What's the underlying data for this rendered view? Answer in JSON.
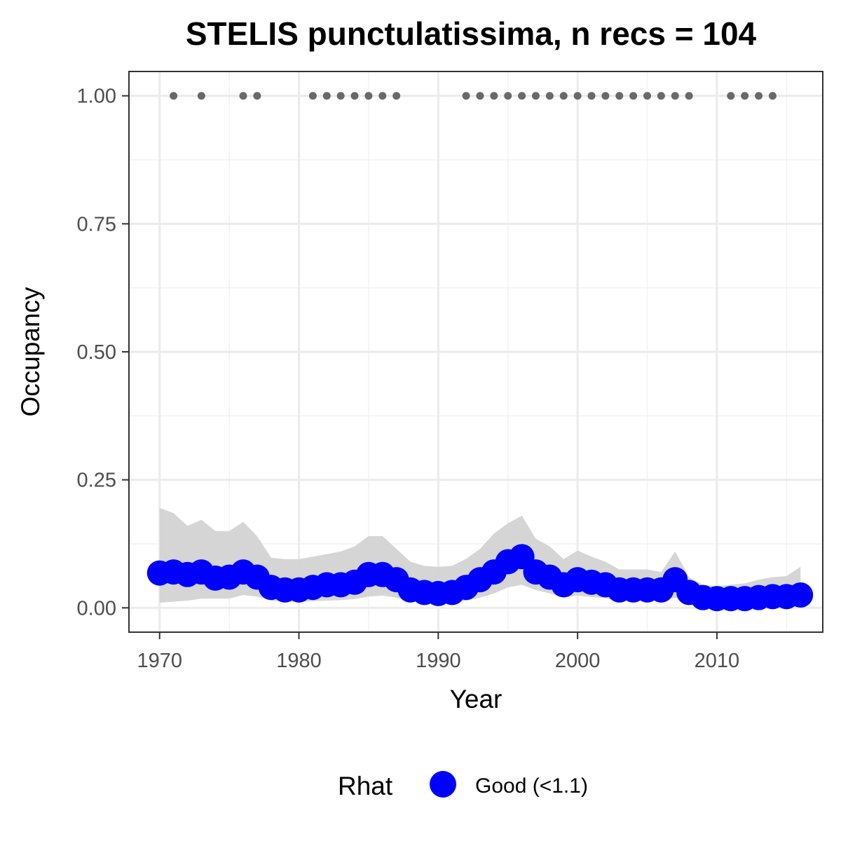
{
  "chart_data": {
    "type": "line",
    "title": "STELIS punctulatissima, n recs = 104",
    "xlabel": "Year",
    "ylabel": "Occupancy",
    "xlim": [
      1967.8,
      2017.6
    ],
    "ylim": [
      -0.0475,
      1.0475
    ],
    "x_ticks": [
      1970,
      1980,
      1990,
      2000,
      2010
    ],
    "x_tick_labels": [
      "1970",
      "1980",
      "1990",
      "2000",
      "2010"
    ],
    "y_ticks": [
      0,
      0.25,
      0.5,
      0.75,
      1.0
    ],
    "y_tick_labels": [
      "0.00",
      "0.25",
      "0.50",
      "0.75",
      "1.00"
    ],
    "grid": true,
    "legend": {
      "title": "Rhat",
      "position": "bottom",
      "entries": [
        {
          "label": "Good (<1.1)",
          "color": "#0000ff"
        }
      ]
    },
    "colors": {
      "series": "#0000ff",
      "ribbon": "#d3d3d3",
      "records": "#696969"
    },
    "x": [
      1970,
      1971,
      1972,
      1973,
      1974,
      1975,
      1976,
      1977,
      1978,
      1979,
      1980,
      1981,
      1982,
      1983,
      1984,
      1985,
      1986,
      1987,
      1988,
      1989,
      1990,
      1991,
      1992,
      1993,
      1994,
      1995,
      1996,
      1997,
      1998,
      1999,
      2000,
      2001,
      2002,
      2003,
      2004,
      2005,
      2006,
      2007,
      2008,
      2009,
      2010,
      2011,
      2012,
      2013,
      2014,
      2015,
      2016
    ],
    "series": [
      {
        "values": [
          0.068,
          0.07,
          0.065,
          0.07,
          0.058,
          0.06,
          0.07,
          0.06,
          0.04,
          0.035,
          0.035,
          0.04,
          0.045,
          0.045,
          0.05,
          0.065,
          0.065,
          0.055,
          0.035,
          0.03,
          0.028,
          0.03,
          0.04,
          0.055,
          0.07,
          0.09,
          0.1,
          0.07,
          0.06,
          0.045,
          0.055,
          0.05,
          0.045,
          0.035,
          0.035,
          0.035,
          0.035,
          0.055,
          0.03,
          0.02,
          0.018,
          0.018,
          0.018,
          0.02,
          0.022,
          0.022,
          0.025
        ],
        "lower": [
          0.01,
          0.012,
          0.014,
          0.018,
          0.018,
          0.018,
          0.025,
          0.022,
          0.014,
          0.012,
          0.012,
          0.013,
          0.014,
          0.015,
          0.017,
          0.022,
          0.024,
          0.02,
          0.013,
          0.01,
          0.01,
          0.011,
          0.014,
          0.02,
          0.028,
          0.04,
          0.045,
          0.035,
          0.028,
          0.02,
          0.024,
          0.021,
          0.019,
          0.014,
          0.014,
          0.014,
          0.014,
          0.02,
          0.012,
          0.008,
          0.007,
          0.007,
          0.008,
          0.009,
          0.009,
          0.01,
          0.01
        ],
        "upper": [
          0.195,
          0.185,
          0.16,
          0.172,
          0.15,
          0.15,
          0.168,
          0.14,
          0.098,
          0.095,
          0.095,
          0.1,
          0.105,
          0.11,
          0.12,
          0.14,
          0.14,
          0.115,
          0.09,
          0.082,
          0.08,
          0.082,
          0.096,
          0.115,
          0.145,
          0.165,
          0.18,
          0.135,
          0.12,
          0.095,
          0.112,
          0.1,
          0.09,
          0.075,
          0.075,
          0.075,
          0.07,
          0.11,
          0.06,
          0.045,
          0.042,
          0.045,
          0.048,
          0.055,
          0.06,
          0.062,
          0.08
        ]
      }
    ],
    "record_years": [
      1971,
      1973,
      1976,
      1977,
      1981,
      1982,
      1983,
      1984,
      1985,
      1986,
      1987,
      1992,
      1993,
      1994,
      1995,
      1996,
      1997,
      1998,
      1999,
      2000,
      2001,
      2002,
      2003,
      2004,
      2005,
      2006,
      2007,
      2008,
      2011,
      2012,
      2013,
      2014
    ],
    "record_value": 1.0
  }
}
